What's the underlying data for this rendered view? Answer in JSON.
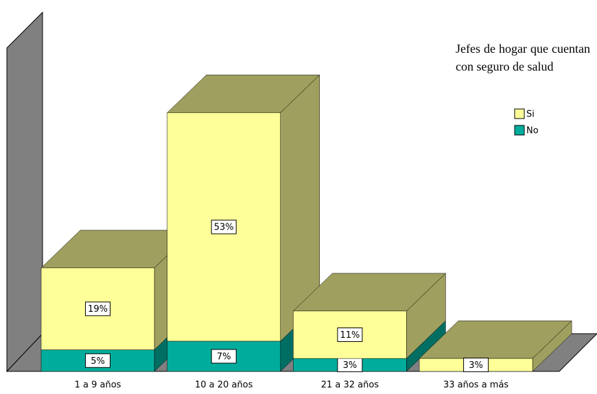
{
  "chart_data": {
    "type": "bar3d-stacked",
    "categories": [
      "1 a 9 años",
      "10 a 20 años",
      "21 a 32 años",
      "33 años a más"
    ],
    "series": [
      {
        "name": "No",
        "color": "#00ad9c",
        "side_color": "#006e63",
        "values": [
          5,
          7,
          3,
          null
        ],
        "value_labels": [
          "5%",
          "7%",
          "3%",
          null
        ]
      },
      {
        "name": "Si",
        "color": "#ffff99",
        "side_color": "#9f9f5f",
        "values": [
          19,
          53,
          11,
          3
        ],
        "value_labels": [
          "19%",
          "53%",
          "11%",
          "3%"
        ]
      }
    ],
    "legend_title": "Jefes de hogar que cuentan con seguro de salud",
    "legend_order": [
      1,
      0
    ],
    "ylim": [
      0,
      75
    ]
  }
}
